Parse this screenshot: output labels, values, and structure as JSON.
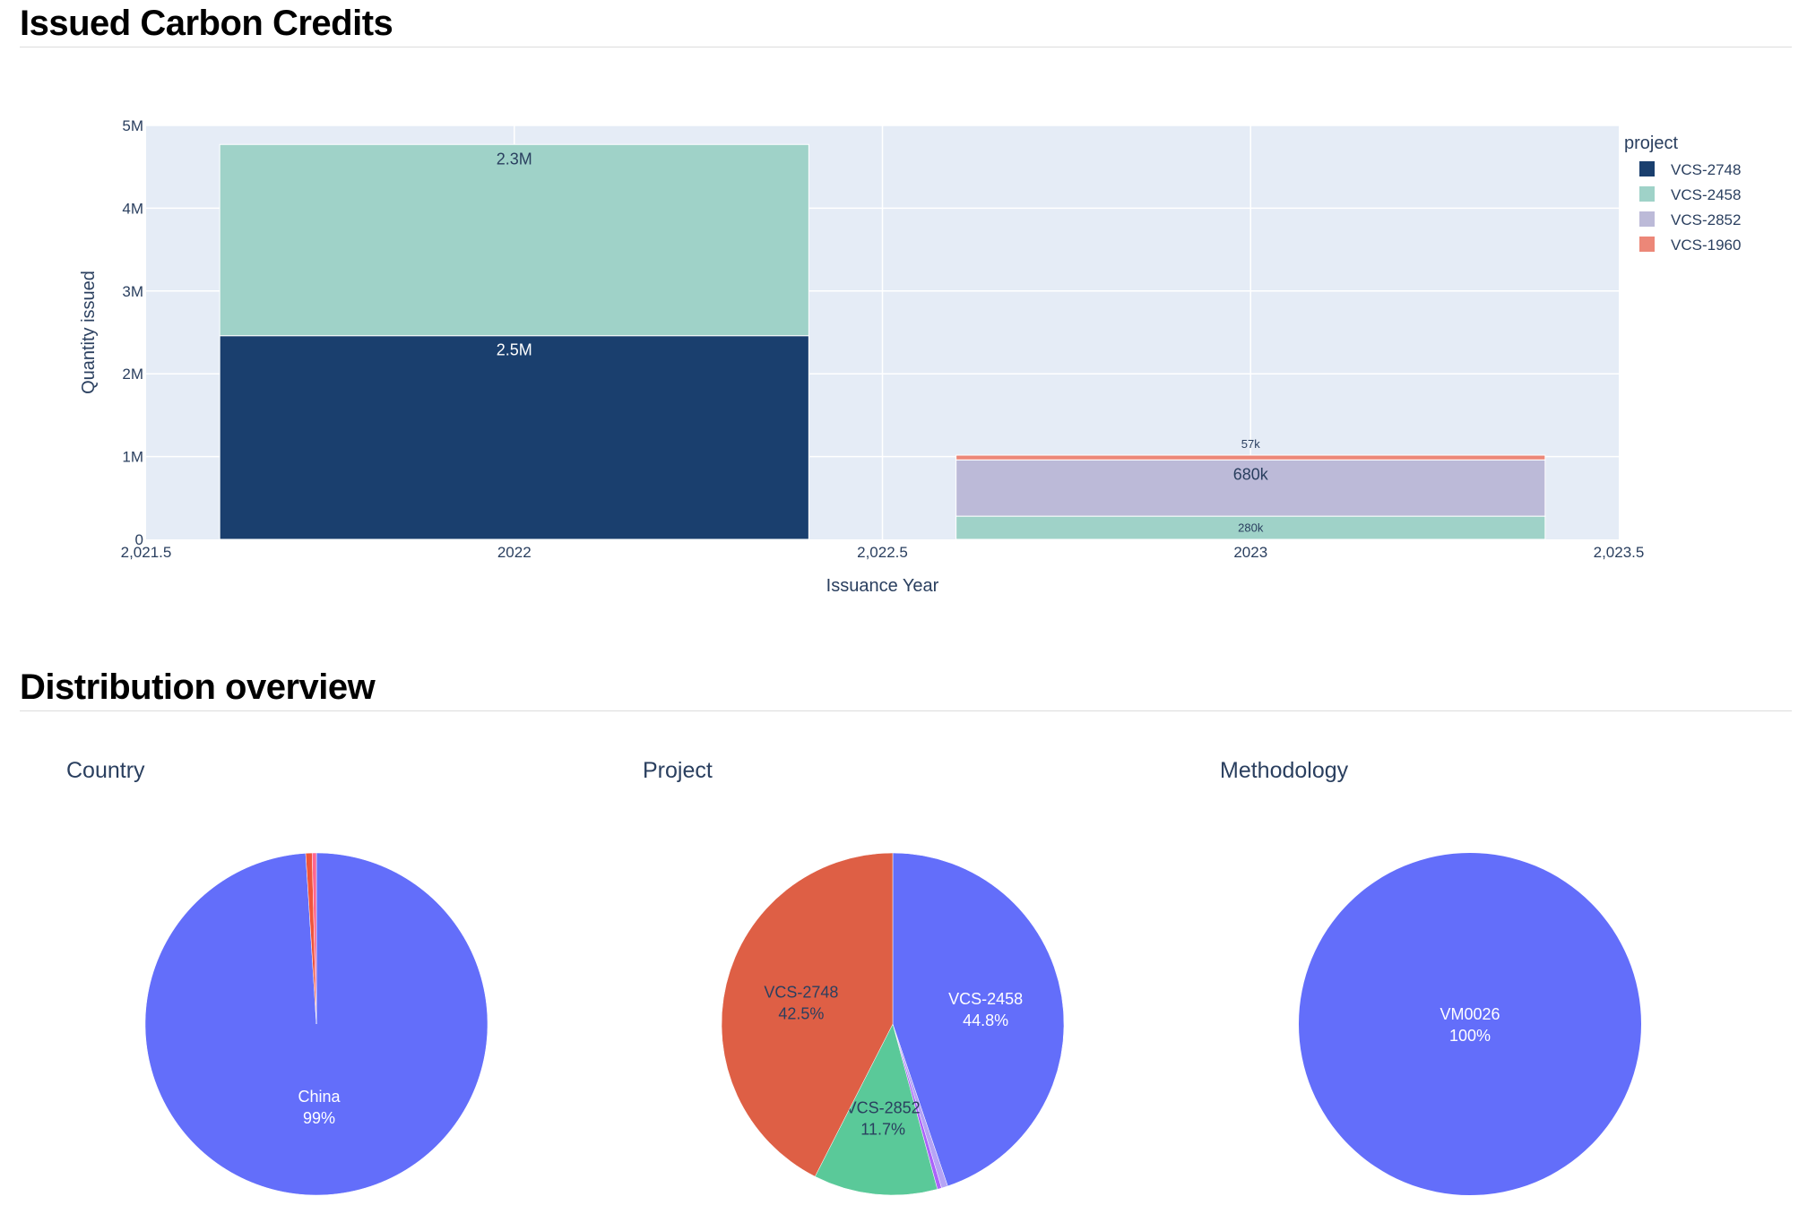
{
  "sections": {
    "issued_title": "Issued Carbon Credits",
    "distribution_title": "Distribution overview"
  },
  "colors": {
    "plot_bg": "#e5ecf6",
    "VCS-2748": "#1a3f6e",
    "VCS-2458": "#9fd2c8",
    "VCS-2852": "#bcbad8",
    "VCS-1960": "#ec8778",
    "pie_blue": "#636efa",
    "pie_red": "#ef553b",
    "pie_green": "#00cc96",
    "pie_purple": "#ab63fa",
    "pie_orange": "#ffa15a"
  },
  "chart_data": [
    {
      "type": "bar",
      "stacked": true,
      "xlabel": "Issuance Year",
      "ylabel": "Quantity issued",
      "xlim": [
        2021.5,
        2023.5
      ],
      "ylim": [
        0,
        5000000
      ],
      "x_ticks": [
        "2,021.5",
        "2022",
        "2,022.5",
        "2023",
        "2,023.5"
      ],
      "y_ticks": [
        "0",
        "1M",
        "2M",
        "3M",
        "4M",
        "5M"
      ],
      "legend_title": "project",
      "legend_position": "right",
      "grid": true,
      "categories": [
        2022,
        2023
      ],
      "series": [
        {
          "name": "VCS-2748",
          "values": [
            2460000,
            0
          ],
          "labels": [
            "2.5M",
            ""
          ]
        },
        {
          "name": "VCS-2458",
          "values": [
            2310000,
            280000
          ],
          "labels": [
            "2.3M",
            "280k"
          ]
        },
        {
          "name": "VCS-2852",
          "values": [
            0,
            680000
          ],
          "labels": [
            "",
            "680k"
          ]
        },
        {
          "name": "VCS-1960",
          "values": [
            0,
            57000
          ],
          "labels": [
            "",
            "57k"
          ]
        }
      ]
    },
    {
      "type": "pie",
      "title": "Country",
      "slices": [
        {
          "label": "China",
          "percent": 99.0,
          "text": "99%",
          "color": "#636efa"
        },
        {
          "label": "",
          "percent": 0.6,
          "text": "",
          "color": "#ef553b"
        },
        {
          "label": "",
          "percent": 0.4,
          "text": "",
          "color": "#ff6692"
        }
      ]
    },
    {
      "type": "pie",
      "title": "Project",
      "slices": [
        {
          "label": "VCS-2458",
          "percent": 44.8,
          "text": "44.8%",
          "color": "#636efa"
        },
        {
          "label": "",
          "percent": 0.6,
          "text": "",
          "color": "#b6a4f5"
        },
        {
          "label": "",
          "percent": 0.4,
          "text": "",
          "color": "#ab63fa"
        },
        {
          "label": "VCS-2852",
          "percent": 11.7,
          "text": "11.7%",
          "color": "#5ac999"
        },
        {
          "label": "VCS-2748",
          "percent": 42.5,
          "text": "42.5%",
          "color": "#de5f45"
        }
      ]
    },
    {
      "type": "pie",
      "title": "Methodology",
      "slices": [
        {
          "label": "VM0026",
          "percent": 100,
          "text": "100%",
          "color": "#636efa"
        }
      ]
    }
  ]
}
